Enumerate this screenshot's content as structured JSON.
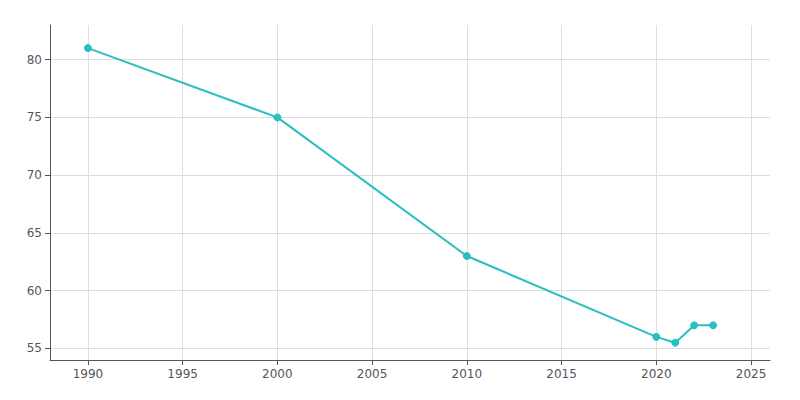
{
  "chart_data": {
    "type": "line",
    "x": [
      1990,
      2000,
      2010,
      2020,
      2021,
      2022,
      2023
    ],
    "values": [
      81,
      75,
      63,
      56,
      55.5,
      57,
      57
    ],
    "color": "#2abfbf",
    "marker": "circle",
    "xlim": [
      1988,
      2026
    ],
    "ylim": [
      54.0,
      83.0
    ],
    "xticks": [
      1990,
      1995,
      2000,
      2005,
      2010,
      2015,
      2020,
      2025
    ],
    "yticks": [
      55,
      60,
      65,
      70,
      75,
      80
    ],
    "grid": true
  }
}
